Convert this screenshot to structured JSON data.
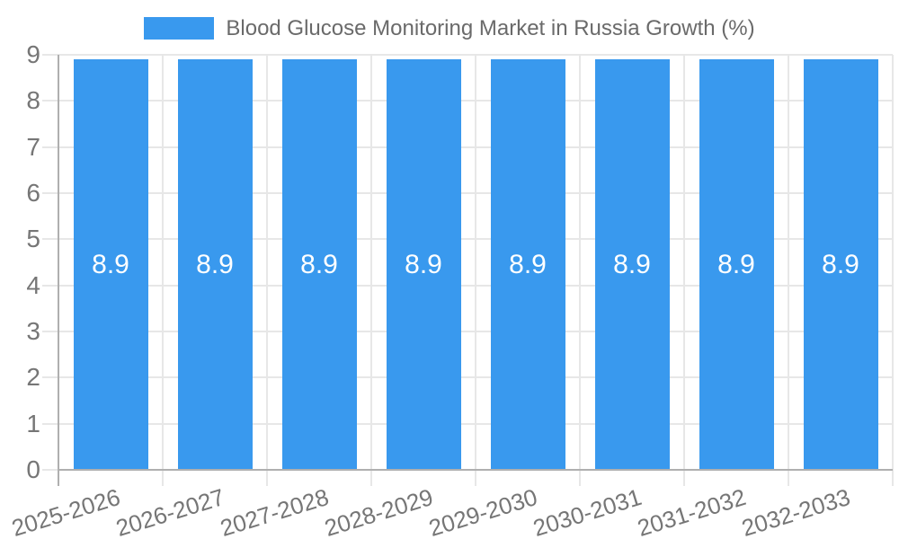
{
  "legend": {
    "label": "Blood Glucose Monitoring Market in Russia Growth (%)",
    "swatch_color": "#3999EE"
  },
  "chart_data": {
    "type": "bar",
    "title": "Blood Glucose Monitoring Market in Russia Growth (%)",
    "categories": [
      "2025-2026",
      "2026-2027",
      "2027-2028",
      "2028-2029",
      "2029-2030",
      "2030-2031",
      "2031-2032",
      "2032-2033"
    ],
    "values": [
      8.9,
      8.9,
      8.9,
      8.9,
      8.9,
      8.9,
      8.9,
      8.9
    ],
    "value_labels": [
      "8.9",
      "8.9",
      "8.9",
      "8.9",
      "8.9",
      "8.9",
      "8.9",
      "8.9"
    ],
    "xlabel": "",
    "ylabel": "",
    "ylim": [
      0,
      9
    ],
    "yticks": [
      0,
      1,
      2,
      3,
      4,
      5,
      6,
      7,
      8,
      9
    ],
    "grid": true,
    "legend_position": "top",
    "x_label_rotation_deg": -17,
    "bar_color": "#3999EE",
    "value_label_color": "#FFFFFF"
  },
  "colors": {
    "background": "#FFFFFF",
    "grid": "#E7E7E7",
    "axis": "#AFAFAF",
    "tick_label_text": "#767676",
    "legend_text": "#6A6A6A"
  }
}
